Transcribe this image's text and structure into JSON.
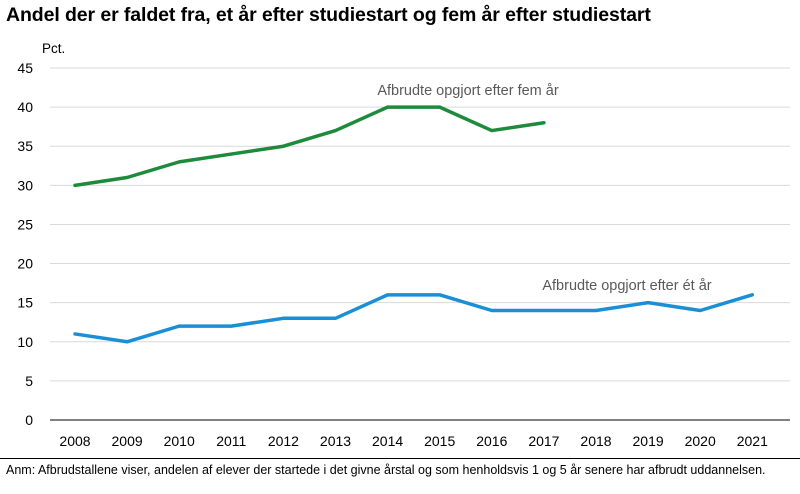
{
  "chart_data": {
    "type": "line",
    "title": "Andel der er faldet fra, et år efter studiestart og fem år efter studiestart",
    "ylabel": "Pct.",
    "xlabel": "",
    "x": [
      "2008",
      "2009",
      "2010",
      "2011",
      "2012",
      "2013",
      "2014",
      "2015",
      "2016",
      "2017",
      "2018",
      "2019",
      "2020",
      "2021"
    ],
    "ylim": [
      0,
      45
    ],
    "yticks": [
      "0",
      "5",
      "10",
      "15",
      "20",
      "25",
      "30",
      "35",
      "40",
      "45"
    ],
    "grid": true,
    "series": [
      {
        "name": "Afbrudte opgjort efter fem år",
        "color": "#1e8a3c",
        "values": [
          30,
          31,
          33,
          34,
          35,
          37,
          40,
          40,
          37,
          38,
          null,
          null,
          null,
          null
        ]
      },
      {
        "name": "Afbrudte opgjort efter ét år",
        "color": "#1a8fd6",
        "values": [
          11,
          10,
          12,
          12,
          13,
          13,
          16,
          16,
          14,
          14,
          14,
          15,
          14,
          16
        ]
      }
    ]
  },
  "note": "Anm: Afbrudstallene viser, andelen af elever der startede i det givne årstal og som henholdsvis 1 og 5 år senere har afbrudt uddannelsen.",
  "colors": {
    "gridline": "#d9d9d9",
    "axis": "#000000",
    "label_text": "#595959"
  }
}
